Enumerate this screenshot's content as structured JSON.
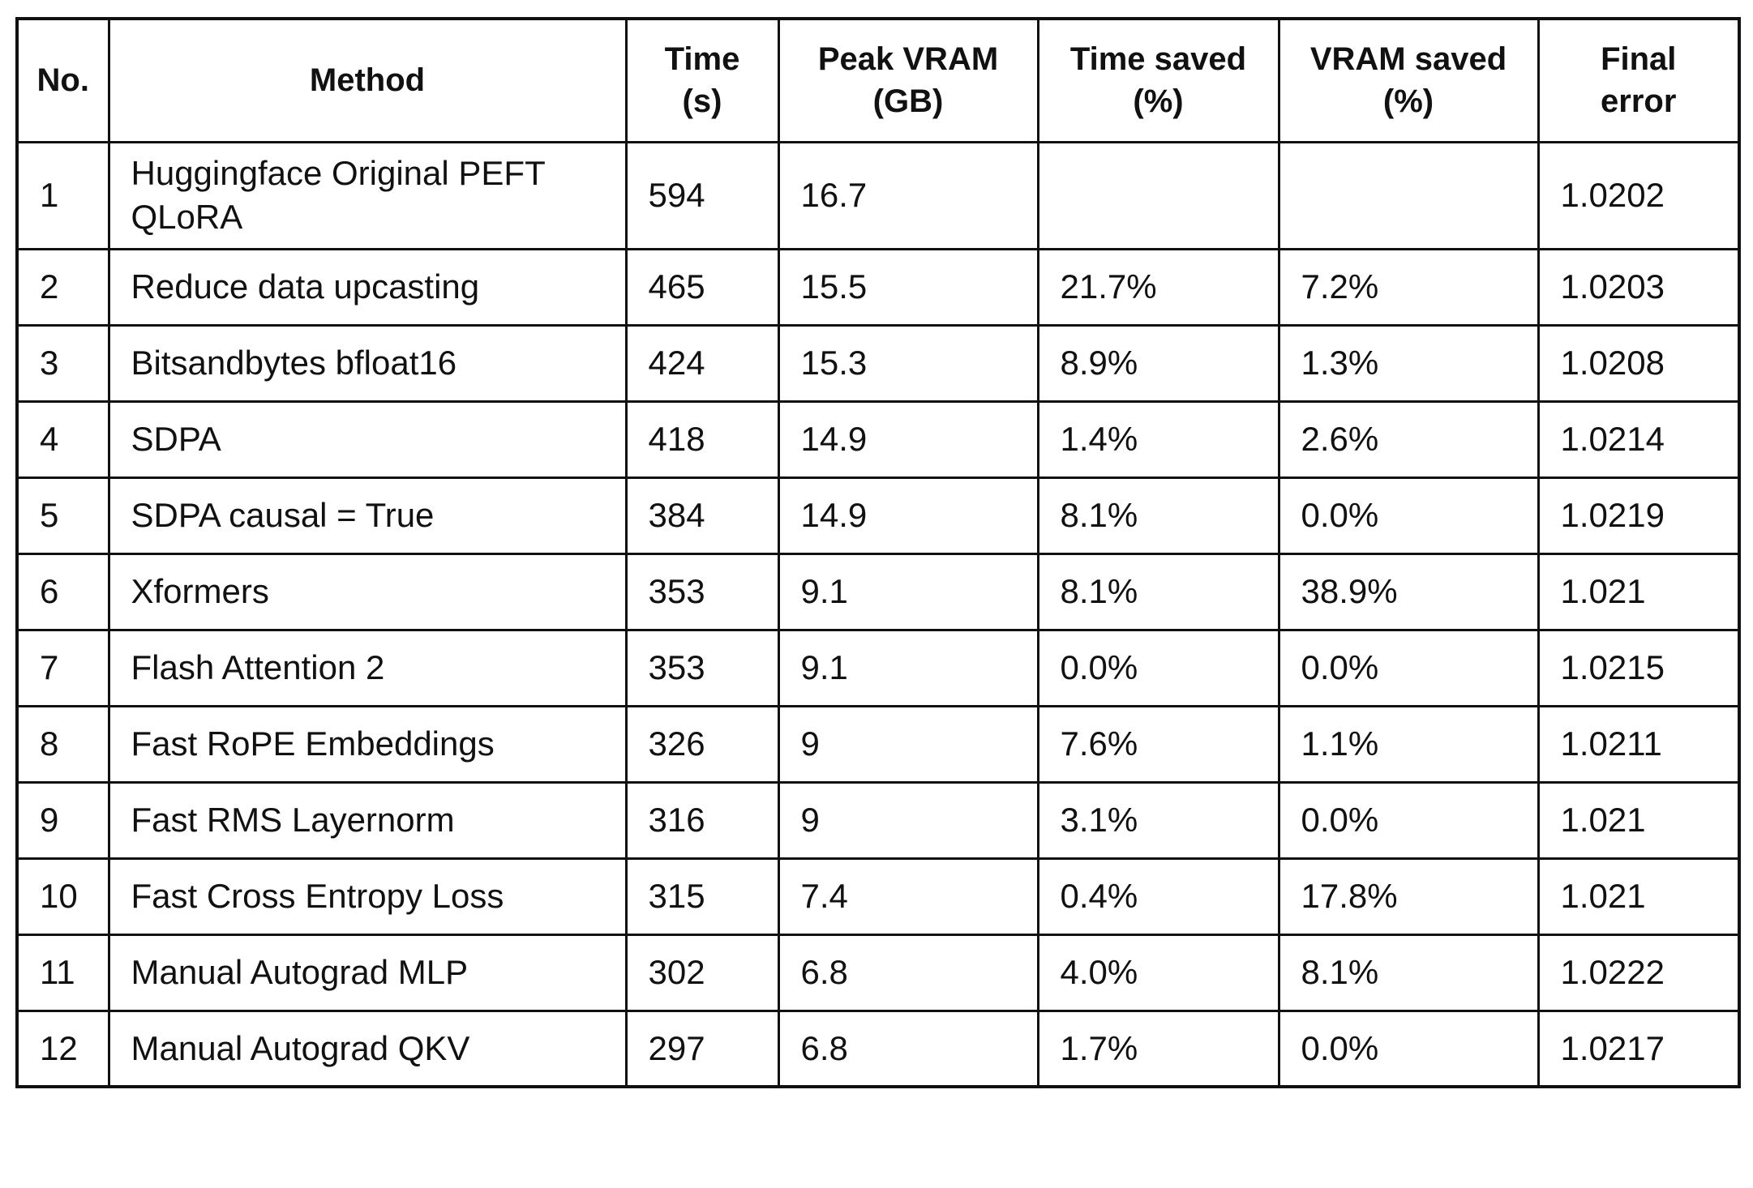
{
  "colors": {
    "background": "#ffffff",
    "border": "#111111",
    "text": "#111111"
  },
  "table": {
    "columns": [
      {
        "line1": "No.",
        "line2": ""
      },
      {
        "line1": "Method",
        "line2": ""
      },
      {
        "line1": "Time",
        "line2": "(s)"
      },
      {
        "line1": "Peak VRAM",
        "line2": "(GB)"
      },
      {
        "line1": "Time saved",
        "line2": "(%)"
      },
      {
        "line1": "VRAM saved",
        "line2": "(%)"
      },
      {
        "line1": "Final",
        "line2": "error"
      }
    ],
    "rows": [
      {
        "no": "1",
        "method": "Huggingface Original PEFT QLoRA",
        "time": "594",
        "peak_vram": "16.7",
        "time_saved": "",
        "vram_saved": "",
        "final_error": "1.0202"
      },
      {
        "no": "2",
        "method": "Reduce data upcasting",
        "time": "465",
        "peak_vram": "15.5",
        "time_saved": "21.7%",
        "vram_saved": "7.2%",
        "final_error": "1.0203"
      },
      {
        "no": "3",
        "method": "Bitsandbytes bfloat16",
        "time": "424",
        "peak_vram": "15.3",
        "time_saved": "8.9%",
        "vram_saved": "1.3%",
        "final_error": "1.0208"
      },
      {
        "no": "4",
        "method": "SDPA",
        "time": "418",
        "peak_vram": "14.9",
        "time_saved": "1.4%",
        "vram_saved": "2.6%",
        "final_error": "1.0214"
      },
      {
        "no": "5",
        "method": "SDPA causal = True",
        "time": "384",
        "peak_vram": "14.9",
        "time_saved": "8.1%",
        "vram_saved": "0.0%",
        "final_error": "1.0219"
      },
      {
        "no": "6",
        "method": "Xformers",
        "time": "353",
        "peak_vram": "9.1",
        "time_saved": "8.1%",
        "vram_saved": "38.9%",
        "final_error": "1.021"
      },
      {
        "no": "7",
        "method": "Flash Attention 2",
        "time": "353",
        "peak_vram": "9.1",
        "time_saved": "0.0%",
        "vram_saved": "0.0%",
        "final_error": "1.0215"
      },
      {
        "no": "8",
        "method": "Fast RoPE Embeddings",
        "time": "326",
        "peak_vram": "9",
        "time_saved": "7.6%",
        "vram_saved": "1.1%",
        "final_error": "1.0211"
      },
      {
        "no": "9",
        "method": "Fast RMS Layernorm",
        "time": "316",
        "peak_vram": "9",
        "time_saved": "3.1%",
        "vram_saved": "0.0%",
        "final_error": "1.021"
      },
      {
        "no": "10",
        "method": "Fast Cross Entropy Loss",
        "time": "315",
        "peak_vram": "7.4",
        "time_saved": "0.4%",
        "vram_saved": "17.8%",
        "final_error": "1.021"
      },
      {
        "no": "11",
        "method": "Manual Autograd MLP",
        "time": "302",
        "peak_vram": "6.8",
        "time_saved": "4.0%",
        "vram_saved": "8.1%",
        "final_error": "1.0222"
      },
      {
        "no": "12",
        "method": "Manual Autograd QKV",
        "time": "297",
        "peak_vram": "6.8",
        "time_saved": "1.7%",
        "vram_saved": "0.0%",
        "final_error": "1.0217"
      }
    ]
  },
  "chart_data": {
    "type": "table",
    "columns": [
      "No.",
      "Method",
      "Time (s)",
      "Peak VRAM (GB)",
      "Time saved (%)",
      "VRAM saved (%)",
      "Final error"
    ],
    "rows": [
      [
        1,
        "Huggingface Original PEFT QLoRA",
        594,
        16.7,
        null,
        null,
        1.0202
      ],
      [
        2,
        "Reduce data upcasting",
        465,
        15.5,
        21.7,
        7.2,
        1.0203
      ],
      [
        3,
        "Bitsandbytes bfloat16",
        424,
        15.3,
        8.9,
        1.3,
        1.0208
      ],
      [
        4,
        "SDPA",
        418,
        14.9,
        1.4,
        2.6,
        1.0214
      ],
      [
        5,
        "SDPA causal = True",
        384,
        14.9,
        8.1,
        0.0,
        1.0219
      ],
      [
        6,
        "Xformers",
        353,
        9.1,
        8.1,
        38.9,
        1.021
      ],
      [
        7,
        "Flash Attention 2",
        353,
        9.1,
        0.0,
        0.0,
        1.0215
      ],
      [
        8,
        "Fast RoPE Embeddings",
        326,
        9,
        7.6,
        1.1,
        1.0211
      ],
      [
        9,
        "Fast RMS Layernorm",
        316,
        9,
        3.1,
        0.0,
        1.021
      ],
      [
        10,
        "Fast Cross Entropy Loss",
        315,
        7.4,
        0.4,
        17.8,
        1.021
      ],
      [
        11,
        "Manual Autograd MLP",
        302,
        6.8,
        4.0,
        8.1,
        1.0222
      ],
      [
        12,
        "Manual Autograd QKV",
        297,
        6.8,
        1.7,
        0.0,
        1.0217
      ]
    ]
  }
}
